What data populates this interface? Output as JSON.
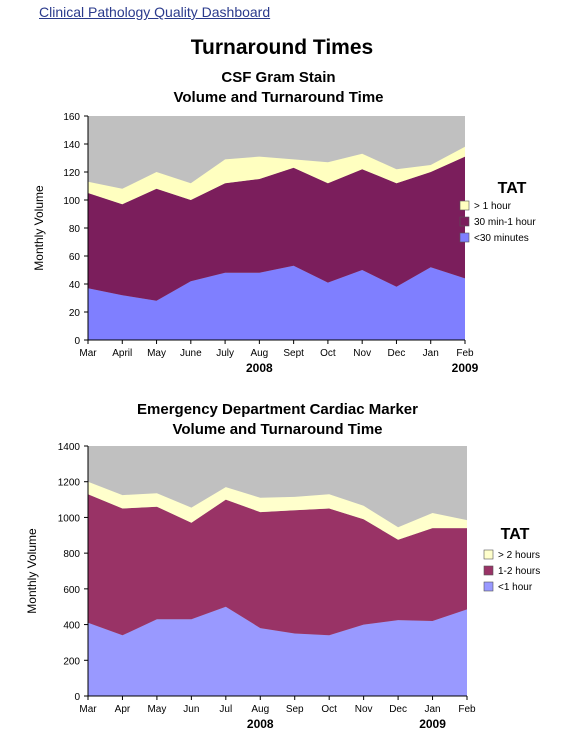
{
  "header": {
    "link_text": "Clinical Pathology Quality Dashboard",
    "heading": "Turnaround Times"
  },
  "chart_data": [
    {
      "type": "area",
      "stacked": true,
      "title_lines": [
        "CSF Gram Stain",
        "Volume and Turnaround Time"
      ],
      "ylabel": "Monthly Volume",
      "ylim": [
        0,
        160
      ],
      "yticks": [
        0,
        20,
        40,
        60,
        80,
        100,
        120,
        140,
        160
      ],
      "categories": [
        "Mar",
        "April",
        "May",
        "June",
        "July",
        "Aug",
        "Sept",
        "Oct",
        "Nov",
        "Dec",
        "Jan",
        "Feb"
      ],
      "years": [
        {
          "label": "2008",
          "at": 5
        },
        {
          "label": "2009",
          "at": 11
        }
      ],
      "legend_title": "TAT",
      "background_color": "#c0c0c0",
      "series": [
        {
          "name": "<30 minutes",
          "color": "#7f7fff",
          "values": [
            37,
            32,
            28,
            42,
            48,
            48,
            53,
            41,
            50,
            38,
            52,
            44
          ]
        },
        {
          "name": "30 min-1 hour",
          "color": "#7b1e5c",
          "values": [
            68,
            65,
            80,
            58,
            64,
            67,
            70,
            71,
            72,
            74,
            68,
            87
          ]
        },
        {
          "name": "> 1 hour",
          "color": "#ffffc0",
          "values": [
            8,
            11,
            12,
            12,
            17,
            16,
            6,
            15,
            11,
            10,
            5,
            7
          ]
        }
      ]
    },
    {
      "type": "area",
      "stacked": true,
      "title_lines": [
        "Emergency Department Cardiac Marker",
        "Volume and Turnaround Time"
      ],
      "ylabel": "Monthly Volume",
      "ylim": [
        0,
        1400
      ],
      "yticks": [
        0,
        200,
        400,
        600,
        800,
        1000,
        1200,
        1400
      ],
      "categories": [
        "Mar",
        "Apr",
        "May",
        "Jun",
        "Jul",
        "Aug",
        "Sep",
        "Oct",
        "Nov",
        "Dec",
        "Jan",
        "Feb"
      ],
      "years": [
        {
          "label": "2008",
          "at": 5
        },
        {
          "label": "2009",
          "at": 10
        }
      ],
      "legend_title": "TAT",
      "background_color": "#c0c0c0",
      "series": [
        {
          "name": "<1 hour",
          "color": "#9999ff",
          "values": [
            410,
            340,
            430,
            430,
            500,
            380,
            350,
            340,
            400,
            425,
            420,
            485
          ]
        },
        {
          "name": "1-2 hours",
          "color": "#993366",
          "values": [
            720,
            710,
            630,
            540,
            600,
            650,
            690,
            710,
            590,
            450,
            520,
            455
          ]
        },
        {
          "name": "> 2 hours",
          "color": "#ffffcc",
          "values": [
            70,
            75,
            75,
            85,
            70,
            80,
            75,
            80,
            75,
            70,
            85,
            45
          ]
        }
      ]
    }
  ]
}
